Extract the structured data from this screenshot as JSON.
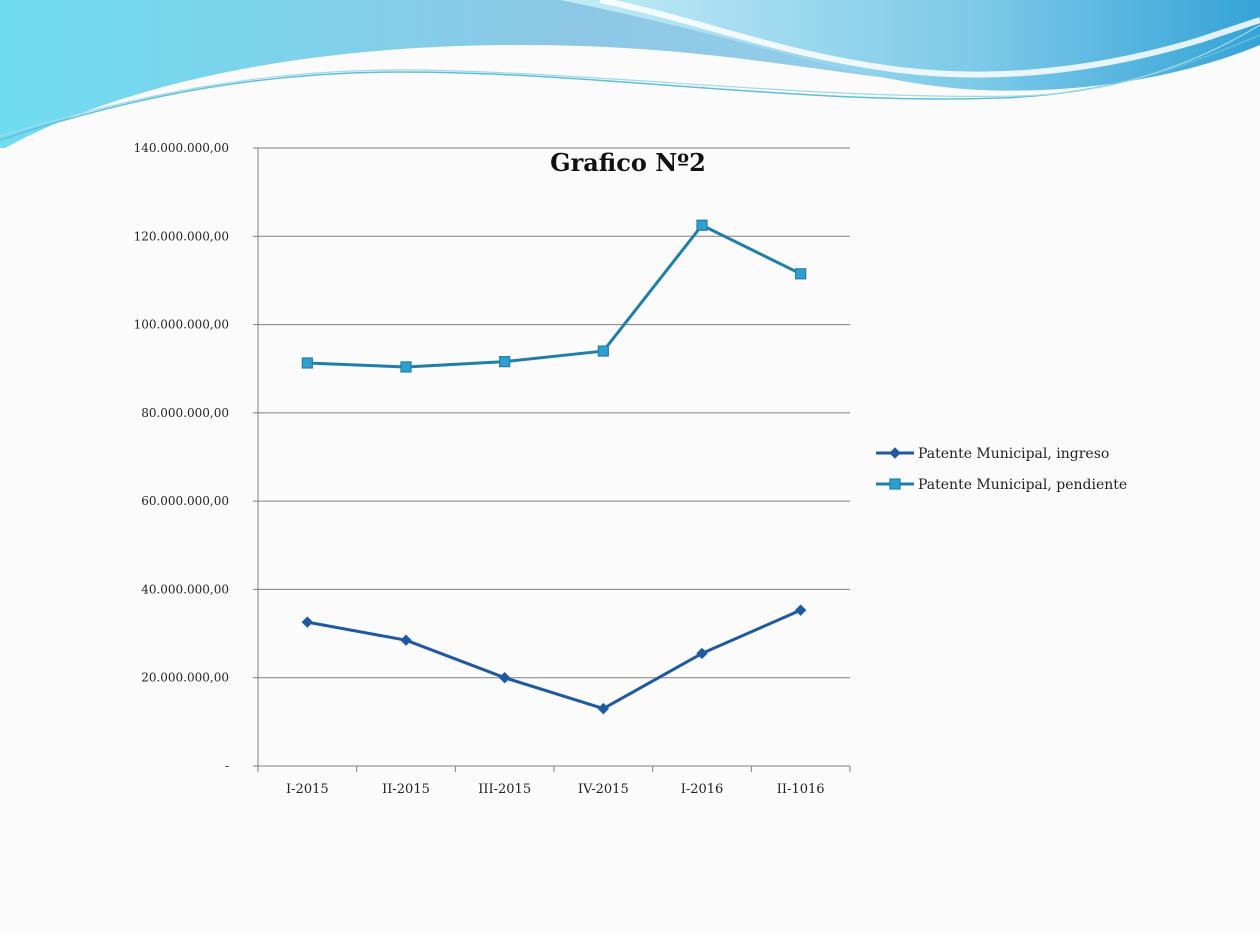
{
  "chart_data": {
    "type": "line",
    "title": "Grafico Nº2",
    "xlabel": "",
    "ylabel": "",
    "categories": [
      "I-2015",
      "II-2015",
      "III-2015",
      "IV-2015",
      "I-2016",
      "II-1016"
    ],
    "ylim": [
      0,
      140000000
    ],
    "yticks": [
      0,
      20000000,
      40000000,
      60000000,
      80000000,
      100000000,
      120000000,
      140000000
    ],
    "ytick_labels": [
      "-",
      "20.000.000,00",
      "40.000.000,00",
      "60.000.000,00",
      "80.000.000,00",
      "100.000.000,00",
      "120.000.000,00",
      "140.000.000,00"
    ],
    "grid": true,
    "legend_position": "right",
    "series": [
      {
        "name": "Patente Municipal, ingreso",
        "marker": "diamond",
        "color": "#1f5aa0",
        "values": [
          32600000,
          28500000,
          20000000,
          13000000,
          25500000,
          35300000
        ]
      },
      {
        "name": "Patente Municipal, pendiente",
        "marker": "square",
        "color": "#1f7fa8",
        "values": [
          91300000,
          90400000,
          91600000,
          94000000,
          122500000,
          111500000
        ]
      }
    ]
  },
  "colors": {
    "background": "#fbfbfb",
    "wave_light": "#8fd6ea",
    "wave_dark": "#3ea9d6",
    "gridline": "#7f7f7f"
  }
}
